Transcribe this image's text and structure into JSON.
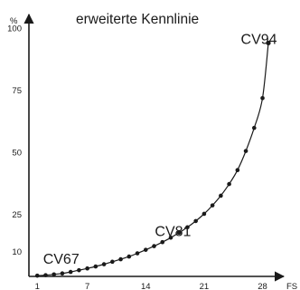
{
  "chart_data": {
    "type": "line",
    "title": "erweiterte Kennlinie",
    "xlabel": "FS",
    "ylabel": "%",
    "xlim": [
      0,
      30
    ],
    "ylim": [
      0,
      100
    ],
    "x_ticks": [
      1,
      7,
      14,
      21,
      28
    ],
    "y_ticks": [
      10,
      25,
      50,
      75,
      100
    ],
    "grid": false,
    "legend": "none",
    "line_color": "#1a1a1a",
    "marker_color": "#1a1a1a",
    "series": [
      {
        "x": [
          1,
          2,
          3,
          4,
          5,
          6,
          7,
          8,
          9,
          10,
          11,
          12,
          13,
          14,
          15,
          16,
          17,
          18,
          19,
          20,
          21,
          22,
          23,
          24,
          25,
          26,
          27,
          28
        ],
        "values": [
          0.3,
          0.5,
          0.8,
          1.2,
          1.8,
          2.5,
          3.2,
          4.0,
          4.9,
          5.9,
          6.9,
          8.0,
          9.3,
          10.7,
          12.2,
          13.8,
          15.6,
          17.6,
          19.8,
          22.3,
          25.2,
          28.6,
          32.5,
          37.2,
          42.8,
          50.5,
          59.8,
          71.8
        ]
      }
    ],
    "endpoint": {
      "x": 28.7,
      "y": 94
    },
    "annotations": [
      {
        "text": "CV67",
        "x": 1.7,
        "y": 7
      },
      {
        "text": "CV81",
        "x": 15.1,
        "y": 18
      },
      {
        "text": "CV94",
        "x": 25.4,
        "y": 95.5
      }
    ]
  }
}
